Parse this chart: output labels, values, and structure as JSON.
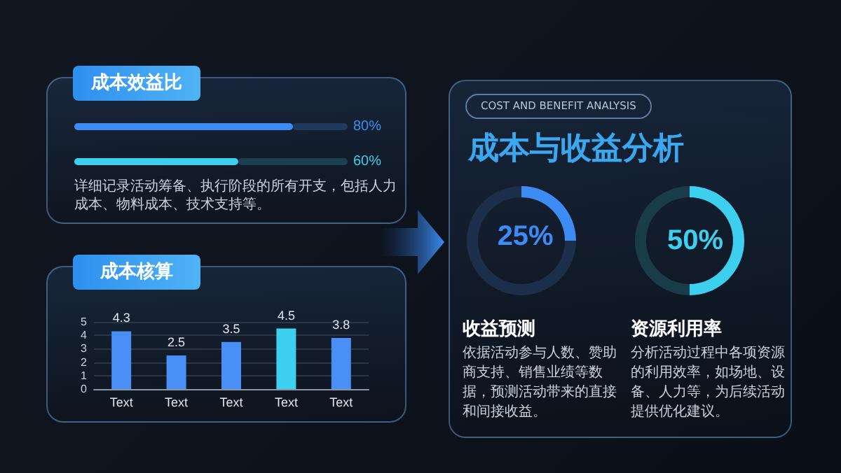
{
  "chart_data": [
    {
      "type": "bar",
      "orientation": "horizontal",
      "stacked": true,
      "title": "成本效益比",
      "categories": [
        null,
        null
      ],
      "series": [
        {
          "colors": [
            "#3d8cf5",
            "#3ccfee"
          ],
          "values": [
            80,
            60
          ],
          "value_labels": [
            "80%",
            "60%"
          ]
        },
        {
          "colors": [
            "#1e3a5f",
            "#1d4050"
          ],
          "values": [
            20,
            40
          ]
        }
      ],
      "xlim": [
        0,
        100
      ],
      "tick_labels": false,
      "annotations": [
        "详细记录活动筹备、执行阶段的所有开支，包括人力成本、物料成本、技术支持等。"
      ]
    },
    {
      "type": "bar",
      "title": "成本核算",
      "categories": [
        "Text",
        "Text",
        "Text",
        "Text",
        "Text"
      ],
      "values": [
        4.3,
        2.5,
        3.5,
        4.5,
        3.8
      ],
      "colors": [
        "#4a8ff5",
        "#4a8ff5",
        "#4a8ff5",
        "#3dcff0",
        "#4a8ff5"
      ],
      "ylim": [
        0,
        5
      ],
      "yticks": [
        0,
        1,
        2,
        3,
        4,
        5
      ],
      "grid": "y",
      "data_labels": true
    },
    {
      "type": "other",
      "title": "成本与收益分析",
      "subtitle": "COST AND BENEFIT ANALYSIS"
    },
    {
      "type": "donut",
      "title": "收益预测",
      "categories": [
        null,
        null
      ],
      "values": [
        25,
        75
      ],
      "colors": [
        "#3d8cf5",
        "#1c2e4a"
      ],
      "value_labels": [
        "25%",
        null
      ],
      "annotations": [
        "依据活动参与人数、赞助商支持、销售业绩等数据，预测活动带来的直接和间接收益。"
      ]
    },
    {
      "type": "donut",
      "title": "资源利用率",
      "categories": [
        null,
        null
      ],
      "values": [
        50,
        50
      ],
      "colors": [
        "#3ccfee",
        "#1a3c48"
      ],
      "value_labels": [
        "50%",
        null
      ],
      "annotations": [
        "分析活动过程中各项资源的利用效率，如场地、设备、人力等，为后续活动提供优化建议。"
      ]
    }
  ]
}
